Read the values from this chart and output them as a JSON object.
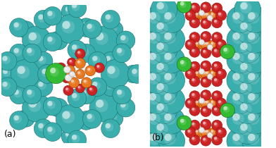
{
  "background_color": "#ffffff",
  "label_a": "(a)",
  "label_b": "(b)",
  "label_fontsize": 9,
  "teal_face": "#3AADAD",
  "teal_edge": "#1A7070",
  "teal_hi": "#7ADDDD",
  "orange_face": "#E87820",
  "orange_edge": "#994400",
  "red_face": "#CC2222",
  "red_edge": "#881111",
  "green_face": "#33BB33",
  "green_edge": "#116611",
  "white_face": "#E8E8E8",
  "white_edge": "#AAAAAA"
}
